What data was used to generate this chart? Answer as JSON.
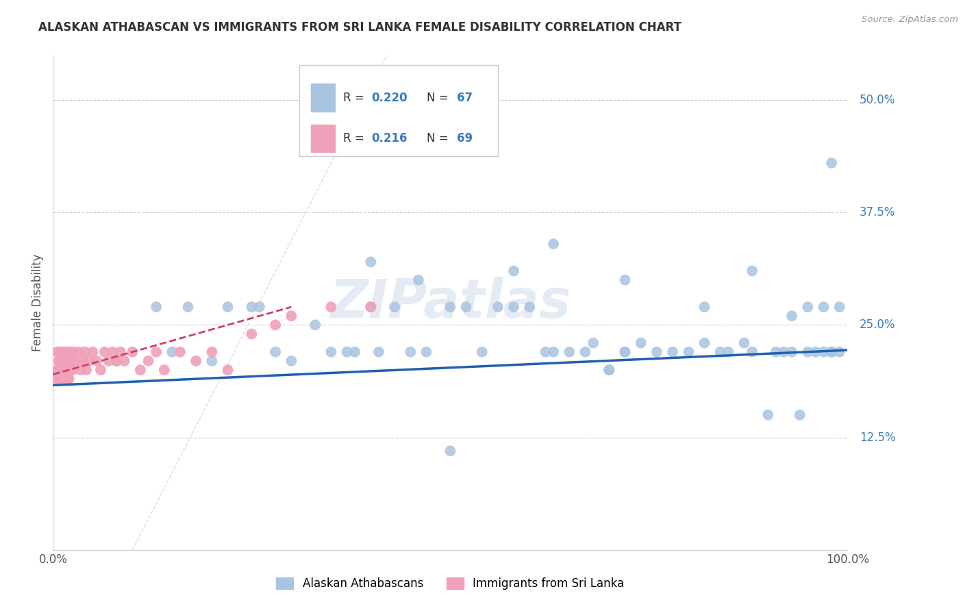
{
  "title": "ALASKAN ATHABASCAN VS IMMIGRANTS FROM SRI LANKA FEMALE DISABILITY CORRELATION CHART",
  "source": "Source: ZipAtlas.com",
  "ylabel": "Female Disability",
  "xlim": [
    0.0,
    1.0
  ],
  "ylim": [
    0.0,
    0.55
  ],
  "ytick_labels": [
    "12.5%",
    "25.0%",
    "37.5%",
    "50.0%"
  ],
  "ytick_values": [
    0.125,
    0.25,
    0.375,
    0.5
  ],
  "color_blue": "#a8c4e0",
  "color_pink": "#f0a0b8",
  "trendline_blue": "#2060b0",
  "trendline_pink": "#d04060",
  "background": "#ffffff",
  "grid_color": "#cccccc",
  "watermark": "ZIPatlas",
  "blue_scatter_x": [
    0.08,
    0.13,
    0.15,
    0.17,
    0.2,
    0.22,
    0.25,
    0.26,
    0.28,
    0.3,
    0.33,
    0.35,
    0.37,
    0.38,
    0.4,
    0.41,
    0.43,
    0.45,
    0.47,
    0.5,
    0.52,
    0.54,
    0.56,
    0.58,
    0.6,
    0.62,
    0.63,
    0.65,
    0.67,
    0.68,
    0.7,
    0.7,
    0.72,
    0.72,
    0.74,
    0.76,
    0.78,
    0.8,
    0.82,
    0.84,
    0.85,
    0.87,
    0.88,
    0.9,
    0.91,
    0.92,
    0.93,
    0.94,
    0.95,
    0.95,
    0.96,
    0.97,
    0.97,
    0.98,
    0.98,
    0.99,
    0.99,
    0.4,
    0.46,
    0.5,
    0.58,
    0.63,
    0.72,
    0.82,
    0.88,
    0.93,
    0.98
  ],
  "blue_scatter_y": [
    0.21,
    0.27,
    0.22,
    0.27,
    0.21,
    0.27,
    0.27,
    0.27,
    0.22,
    0.21,
    0.25,
    0.22,
    0.22,
    0.22,
    0.27,
    0.22,
    0.27,
    0.22,
    0.22,
    0.27,
    0.27,
    0.22,
    0.27,
    0.27,
    0.27,
    0.22,
    0.22,
    0.22,
    0.22,
    0.23,
    0.2,
    0.2,
    0.22,
    0.22,
    0.23,
    0.22,
    0.22,
    0.22,
    0.23,
    0.22,
    0.22,
    0.23,
    0.22,
    0.15,
    0.22,
    0.22,
    0.22,
    0.15,
    0.22,
    0.27,
    0.22,
    0.22,
    0.27,
    0.22,
    0.22,
    0.27,
    0.22,
    0.32,
    0.3,
    0.11,
    0.31,
    0.34,
    0.3,
    0.27,
    0.31,
    0.26,
    0.43
  ],
  "pink_scatter_x": [
    0.005,
    0.005,
    0.005,
    0.007,
    0.007,
    0.008,
    0.008,
    0.01,
    0.01,
    0.01,
    0.01,
    0.011,
    0.011,
    0.012,
    0.012,
    0.013,
    0.013,
    0.014,
    0.014,
    0.015,
    0.015,
    0.015,
    0.016,
    0.016,
    0.017,
    0.017,
    0.018,
    0.018,
    0.019,
    0.019,
    0.02,
    0.02,
    0.021,
    0.021,
    0.022,
    0.022,
    0.025,
    0.025,
    0.028,
    0.03,
    0.032,
    0.035,
    0.038,
    0.04,
    0.042,
    0.045,
    0.05,
    0.055,
    0.06,
    0.065,
    0.07,
    0.075,
    0.08,
    0.085,
    0.09,
    0.1,
    0.11,
    0.12,
    0.13,
    0.14,
    0.16,
    0.18,
    0.2,
    0.22,
    0.25,
    0.28,
    0.3,
    0.35,
    0.4
  ],
  "pink_scatter_y": [
    0.19,
    0.2,
    0.22,
    0.19,
    0.21,
    0.2,
    0.22,
    0.19,
    0.2,
    0.21,
    0.22,
    0.2,
    0.21,
    0.2,
    0.21,
    0.19,
    0.21,
    0.2,
    0.22,
    0.19,
    0.2,
    0.22,
    0.2,
    0.21,
    0.2,
    0.21,
    0.19,
    0.21,
    0.2,
    0.22,
    0.19,
    0.21,
    0.2,
    0.22,
    0.2,
    0.21,
    0.2,
    0.22,
    0.21,
    0.21,
    0.22,
    0.2,
    0.21,
    0.22,
    0.2,
    0.21,
    0.22,
    0.21,
    0.2,
    0.22,
    0.21,
    0.22,
    0.21,
    0.22,
    0.21,
    0.22,
    0.2,
    0.21,
    0.22,
    0.2,
    0.22,
    0.21,
    0.22,
    0.2,
    0.24,
    0.25,
    0.26,
    0.27,
    0.27
  ],
  "blue_trend_x0": 0.0,
  "blue_trend_y0": 0.183,
  "blue_trend_x1": 1.0,
  "blue_trend_y1": 0.222,
  "pink_trend_x0": 0.0,
  "pink_trend_y0": 0.195,
  "pink_trend_x1": 0.3,
  "pink_trend_y1": 0.27
}
